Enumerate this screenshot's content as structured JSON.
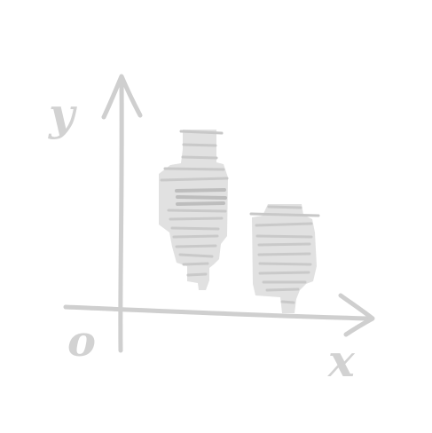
{
  "sketch": {
    "y_axis_label": "y",
    "x_axis_label": "x",
    "origin_label": "o"
  },
  "colors": {
    "stroke": "#cfcfcf",
    "fill": "#e1e1e1",
    "text": "#d2d2d2"
  }
}
